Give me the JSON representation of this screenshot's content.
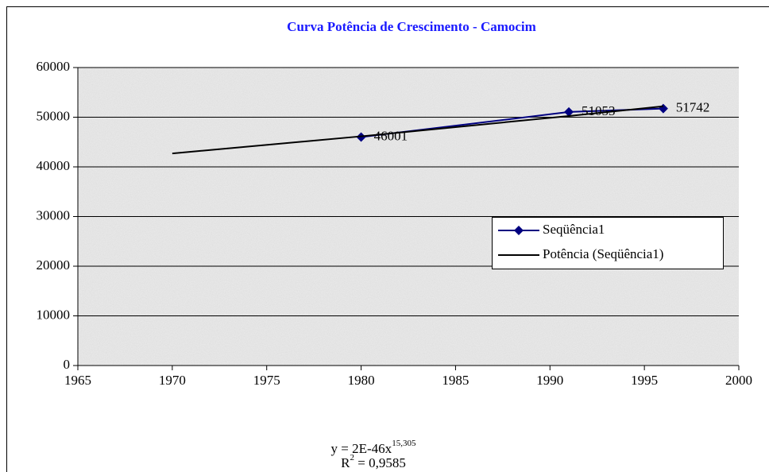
{
  "chart_data": {
    "type": "line",
    "title": "Curva Potência de Crescimento - Camocim",
    "series": [
      {
        "name": "Seqüência1",
        "color": "#000080",
        "x": [
          1980,
          1991,
          1996
        ],
        "values": [
          46001,
          51053,
          51742
        ],
        "marker": "diamond",
        "data_labels": true
      },
      {
        "name": "Potência (Seqüência1)",
        "color": "#000000",
        "x": [
          1970,
          1980,
          1991,
          1996
        ],
        "values": [
          42700,
          46150,
          50240,
          52200
        ],
        "marker": "none",
        "data_labels": false
      }
    ],
    "xlim": [
      1965,
      2000
    ],
    "xticks": [
      1965,
      1970,
      1975,
      1980,
      1985,
      1990,
      1995,
      2000
    ],
    "ylim": [
      0,
      60000
    ],
    "yticks": [
      0,
      10000,
      20000,
      30000,
      40000,
      50000,
      60000
    ],
    "grid": true,
    "legend": "right",
    "equation": {
      "base": "y = 2E-46x",
      "exponent": "15,305"
    },
    "r_squared": {
      "base": "R",
      "exponent": "2",
      "rest": " = 0,9585"
    }
  }
}
